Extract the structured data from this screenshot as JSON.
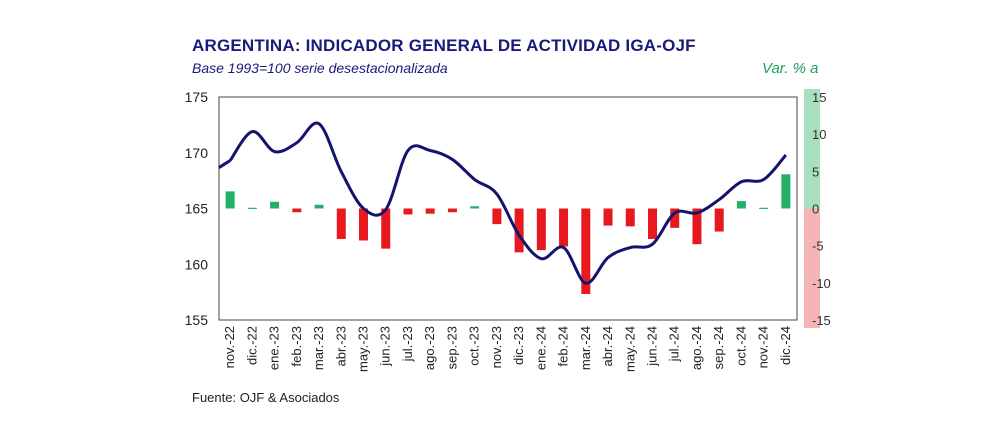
{
  "chart_data": {
    "type": "bar+line",
    "title": "ARGENTINA: INDICADOR GENERAL DE ACTIVIDAD IGA-OJF",
    "subtitle": "Base 1993=100 serie desestacionalizada",
    "right_axis_label": "Var. % a",
    "source": "Fuente: OJF & Asociados",
    "categories": [
      "nov.-22",
      "dic.-22",
      "ene.-23",
      "feb.-23",
      "mar.-23",
      "abr.-23",
      "may.-23",
      "jun.-23",
      "jul.-23",
      "ago.-23",
      "sep.-23",
      "oct.-23",
      "nov.-23",
      "dic.-23",
      "ene.-24",
      "feb.-24",
      "mar.-24",
      "abr.-24",
      "may.-24",
      "jun.-24",
      "jul.-24",
      "ago.-24",
      "sep.-24",
      "oct.-24",
      "nov.-24",
      "dic.-24"
    ],
    "left_axis": {
      "ylim": [
        155,
        175
      ],
      "ticks": [
        155,
        160,
        165,
        170,
        175
      ]
    },
    "right_axis": {
      "ylim": [
        -15,
        15
      ],
      "ticks": [
        15,
        10,
        5,
        0,
        -5,
        -10,
        -15
      ]
    },
    "series": [
      {
        "name": "IGA-OJF (Base 1993=100)",
        "axis": "left",
        "kind": "line",
        "color": "#14146e",
        "values": [
          169.3,
          171.9,
          170.1,
          170.9,
          172.6,
          168.3,
          165.0,
          164.9,
          170.2,
          170.2,
          169.4,
          167.6,
          166.3,
          162.6,
          160.5,
          161.5,
          158.3,
          160.6,
          161.5,
          161.8,
          164.6,
          164.6,
          165.8,
          167.4,
          167.6,
          169.8
        ]
      },
      {
        "name": "Var. % a",
        "axis": "right",
        "kind": "bar",
        "positive_color": "#22b066",
        "negative_color": "#e8191e",
        "values": [
          2.3,
          0.1,
          0.9,
          -0.5,
          0.5,
          -4.1,
          -4.3,
          -5.4,
          -0.8,
          -0.7,
          -0.5,
          0.3,
          -2.1,
          -5.9,
          -5.6,
          -5.1,
          -11.5,
          -2.3,
          -2.4,
          -4.1,
          -2.6,
          -4.8,
          -3.1,
          1.0,
          0.1,
          4.6
        ]
      }
    ]
  },
  "colors": {
    "title": "#1a1a7a",
    "right_axis_label": "#1fa05a",
    "positive_band": "#a8dfc0",
    "negative_band": "#f5b5b5"
  }
}
